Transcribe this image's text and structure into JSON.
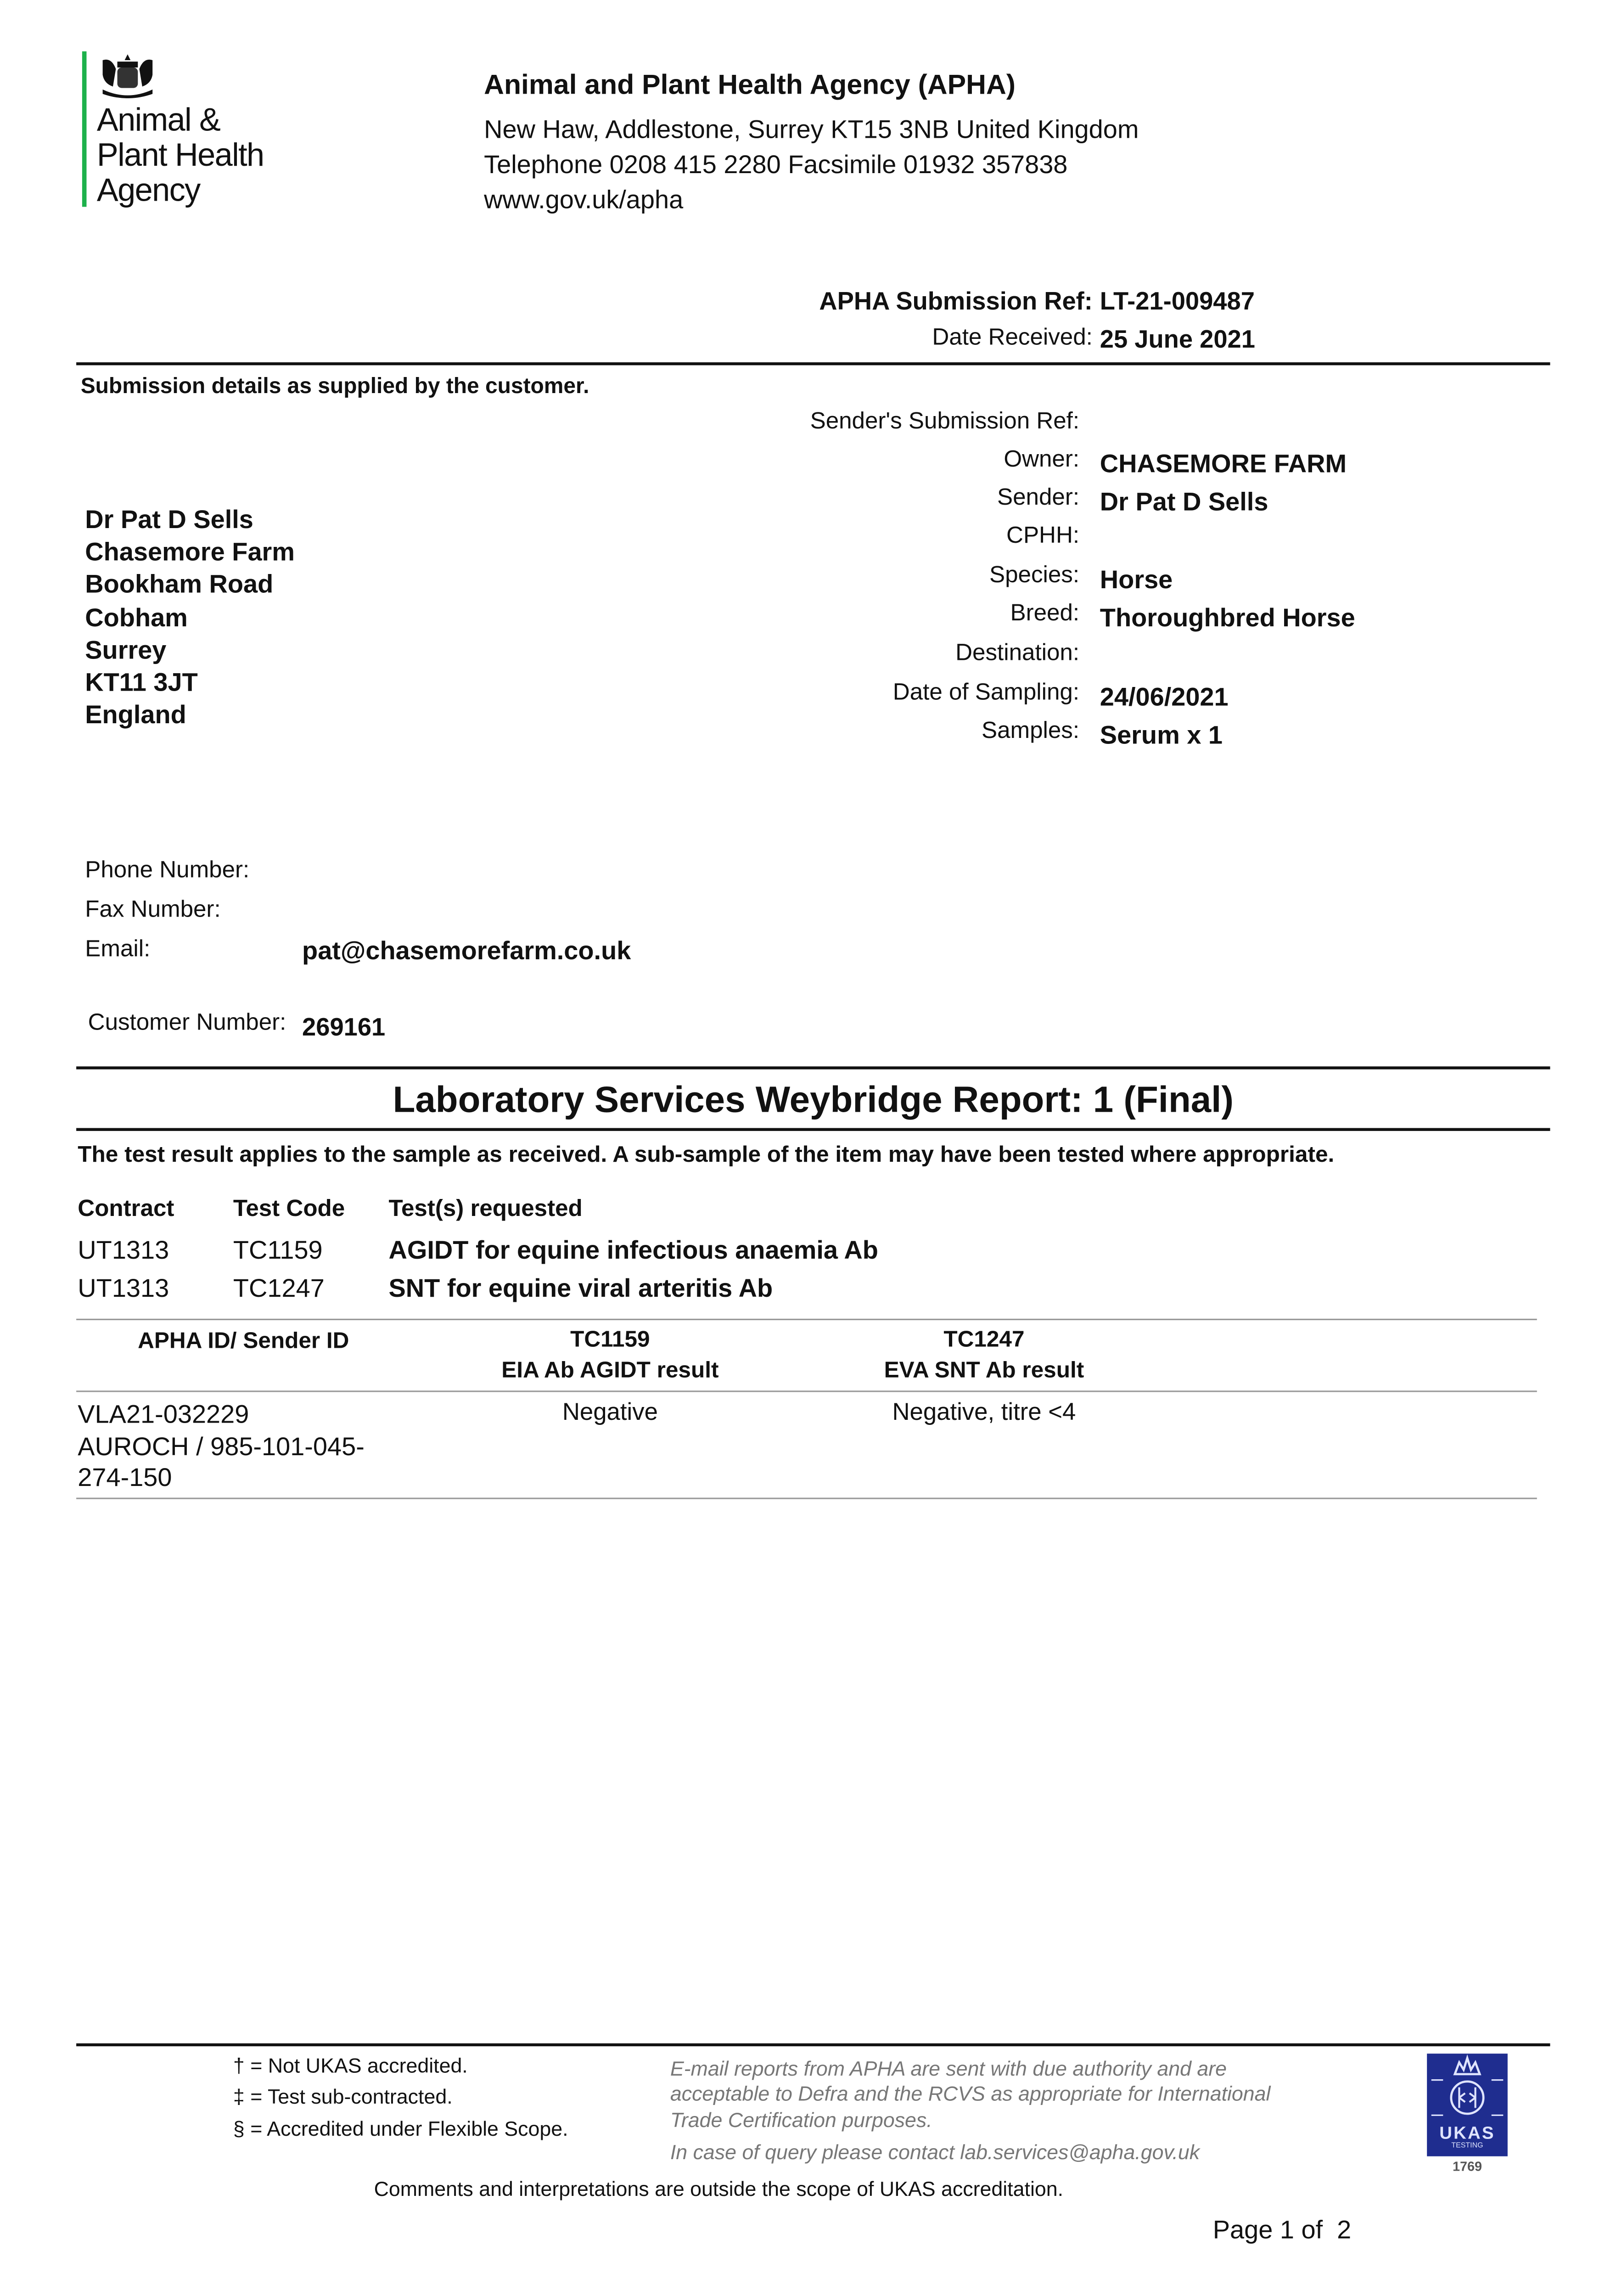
{
  "logo": {
    "lines": [
      "Animal &",
      "Plant Health",
      "Agency"
    ],
    "accent_color": "#1db14b"
  },
  "header": {
    "org": "Animal and Plant Health Agency (APHA)",
    "address": "New Haw, Addlestone, Surrey KT15 3NB United Kingdom",
    "phone_fax": "Telephone 0208 415 2280 Facsimile 01932 357838",
    "web": "www.gov.uk/apha"
  },
  "submission": {
    "ref_label": "APHA Submission Ref:",
    "ref": "LT-21-009487",
    "date_label": "Date Received:",
    "date": "25 June 2021"
  },
  "customer_note": "Submission details as supplied by the customer.",
  "details": [
    {
      "label": "Sender's Submission Ref:",
      "value": ""
    },
    {
      "label": "Owner:",
      "value": "CHASEMORE FARM"
    },
    {
      "label": "Sender:",
      "value": "Dr Pat D Sells"
    },
    {
      "label": "CPHH:",
      "value": ""
    },
    {
      "label": "Species:",
      "value": "Horse"
    },
    {
      "label": "Breed:",
      "value": "Thoroughbred Horse"
    },
    {
      "label": "Destination:",
      "value": ""
    },
    {
      "label": "Date of Sampling:",
      "value": "24/06/2021"
    },
    {
      "label": "Samples:",
      "value": "Serum x 1"
    }
  ],
  "address": [
    "Dr Pat D Sells",
    "Chasemore Farm",
    "Bookham Road",
    "Cobham",
    "Surrey",
    "KT11 3JT",
    "England"
  ],
  "contact": {
    "phone_label": "Phone Number:",
    "fax_label": "Fax Number:",
    "email_label": "Email:",
    "email": "pat@chasemorefarm.co.uk",
    "customer_label": "Customer Number:",
    "customer_number": "269161"
  },
  "report": {
    "title": "Laboratory Services Weybridge Report: 1 (Final)",
    "note": "The test result applies to the sample as received. A sub-sample of the item may have been tested where appropriate."
  },
  "tests": {
    "headers": [
      "Contract",
      "Test Code",
      "Test(s) requested"
    ],
    "rows": [
      [
        "UT1313",
        "TC1159",
        "AGIDT for equine infectious anaemia Ab"
      ],
      [
        "UT1313",
        "TC1247",
        "SNT for equine viral arteritis Ab"
      ]
    ]
  },
  "results": {
    "headers": [
      {
        "code": "",
        "name": "APHA ID/ Sender ID"
      },
      {
        "code": "TC1159",
        "name": "EIA Ab AGIDT result"
      },
      {
        "code": "TC1247",
        "name": "EVA SNT Ab result"
      }
    ],
    "rows": [
      {
        "id_lines": [
          "VLA21-032229",
          "AUROCH / 985-101-045-",
          "274-150"
        ],
        "eia": "Negative",
        "eva": "Negative, titre <4"
      }
    ]
  },
  "footer": {
    "legend": [
      "† = Not UKAS accredited.",
      "‡ = Test sub-contracted.",
      "§ = Accredited under Flexible Scope."
    ],
    "email_note": [
      "E-mail reports from APHA are sent with due authority and are",
      "acceptable to Defra and the RCVS as appropriate for International",
      "Trade Certification purposes."
    ],
    "query": "In case of query please contact lab.services@apha.gov.uk",
    "comments": "Comments and interpretations are outside the scope of UKAS accreditation.",
    "ukas": {
      "text": "UKAS",
      "sub": "TESTING",
      "number": "1769",
      "color": "#1f2d8f"
    },
    "page": "Page 1 of  2"
  }
}
